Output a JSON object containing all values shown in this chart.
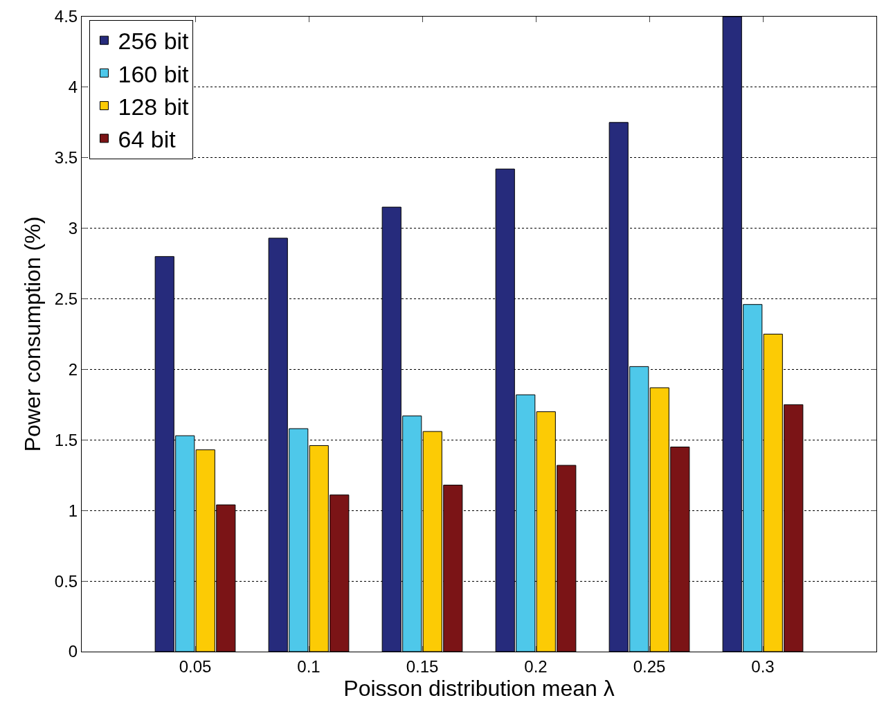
{
  "chart_data": {
    "type": "bar",
    "xlabel": "Poisson distribution mean λ",
    "ylabel": "Power consumption (%)",
    "x": [
      0.05,
      0.1,
      0.15,
      0.2,
      0.25,
      0.3
    ],
    "series": [
      {
        "name": "256 bit",
        "color": "#262b7c",
        "values": [
          2.8,
          2.93,
          3.15,
          3.42,
          3.75,
          4.5
        ]
      },
      {
        "name": "160 bit",
        "color": "#4ec8ea",
        "values": [
          1.53,
          1.58,
          1.67,
          1.82,
          2.02,
          2.46
        ]
      },
      {
        "name": "128 bit",
        "color": "#fccb05",
        "values": [
          1.43,
          1.46,
          1.56,
          1.7,
          1.87,
          2.25
        ]
      },
      {
        "name": "64 bit",
        "color": "#7b1416",
        "values": [
          1.04,
          1.11,
          1.18,
          1.32,
          1.45,
          1.75
        ]
      }
    ],
    "xlim": [
      0,
      0.35
    ],
    "xticks": [
      0.05,
      0.1,
      0.15,
      0.2,
      0.25,
      0.3
    ],
    "ylim": [
      0,
      4.5
    ],
    "yticks": [
      0,
      0.5,
      1,
      1.5,
      2,
      2.5,
      3,
      3.5,
      4,
      4.5
    ],
    "grid": "y",
    "legend": "top left"
  }
}
